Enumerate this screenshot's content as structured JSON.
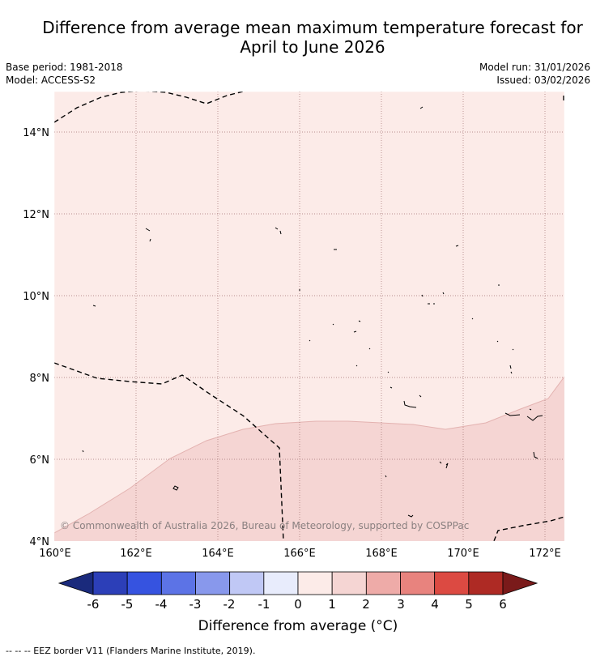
{
  "title": {
    "line1": "Difference from average mean maximum temperature forecast for",
    "line2": "April to June 2026"
  },
  "meta": {
    "base_period": "Base period: 1981-2018",
    "model": "Model: ACCESS-S2",
    "model_run": "Model run: 31/01/2026",
    "issued": "Issued: 03/02/2026"
  },
  "map": {
    "lon_range": [
      160,
      172.5
    ],
    "lat_range": [
      4,
      15
    ],
    "lon_ticks": [
      "160°E",
      "162°E",
      "164°E",
      "166°E",
      "168°E",
      "170°E",
      "172°E"
    ],
    "lat_ticks": [
      "4°N",
      "6°N",
      "8°N",
      "10°N",
      "12°N",
      "14°N"
    ],
    "copyright": "© Commonwealth of Australia 2026, Bureau of Meteorology, supported by COSPPac",
    "fill_colors": {
      "zero_to_one": "#fcebe8",
      "one_to_two": "#f5d5d3"
    }
  },
  "colorbar": {
    "ticks": [
      "-6",
      "-5",
      "-4",
      "-3",
      "-2",
      "-1",
      "0",
      "1",
      "2",
      "3",
      "4",
      "5",
      "6"
    ],
    "colors": [
      "#1a2a7c",
      "#2c3fb8",
      "#3653e0",
      "#5c73e6",
      "#8898ec",
      "#c0c8f5",
      "#e8ecfc",
      "#fcebe8",
      "#f5d5d3",
      "#eeaba8",
      "#e8837e",
      "#dc4a42",
      "#ae2a24",
      "#7a1a1a"
    ],
    "label": "Difference from average (°C)"
  },
  "footnote": "--  --  -- EEZ border V11 (Flanders Marine Institute, 2019)."
}
